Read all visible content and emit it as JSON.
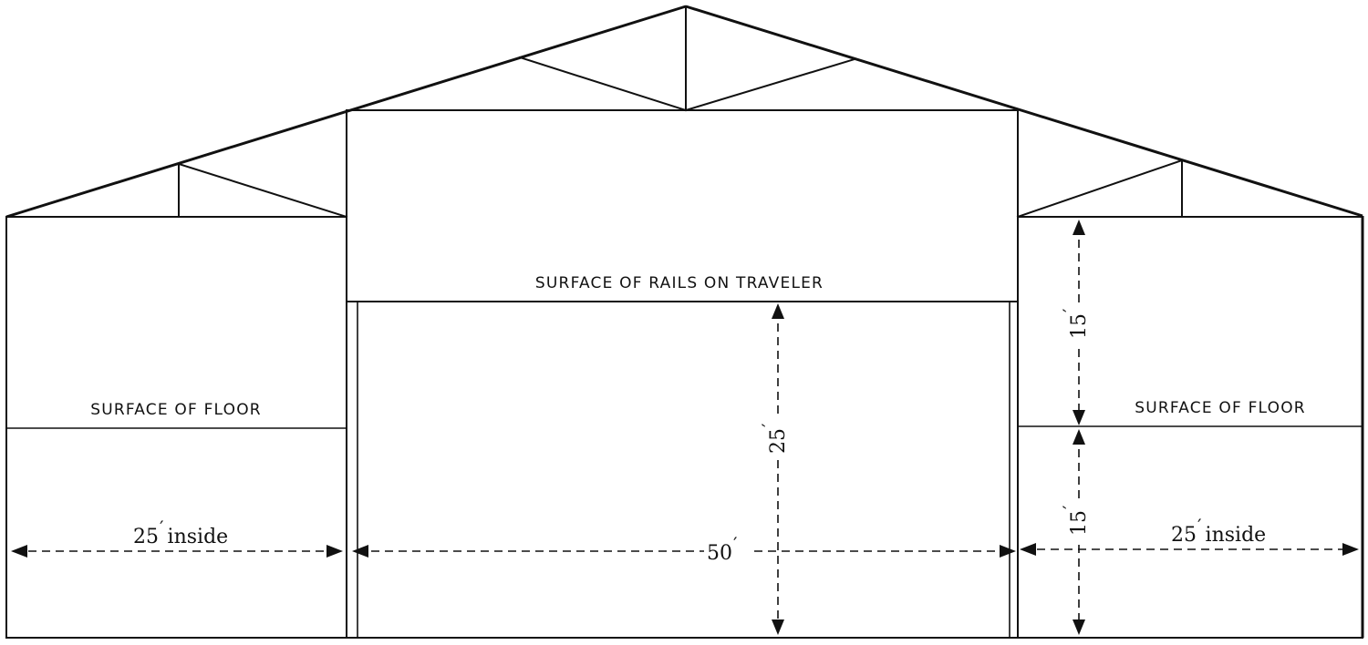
{
  "labels": {
    "rails_surface": "SURFACE OF RAILS ON TRAVELER",
    "floor_left": "SURFACE OF FLOOR",
    "floor_right": "SURFACE OF FLOOR"
  },
  "dimensions": {
    "left_bay_width": "25",
    "left_bay_suffix": "inside",
    "center_width": "50",
    "traveler_depth": "25",
    "upper_height": "15",
    "lower_height": "15",
    "right_bay_width": "25",
    "right_bay_suffix": "inside",
    "foot_mark": "′"
  }
}
